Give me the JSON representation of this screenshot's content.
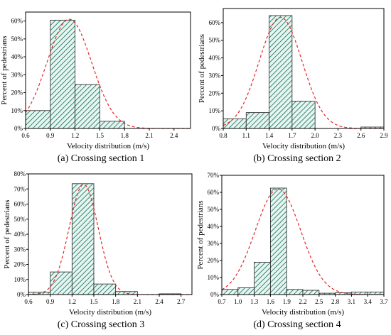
{
  "chart_data": [
    {
      "type": "bar",
      "caption": "(a) Crossing section 1",
      "xlabel": "Velocity distribution (m/s)",
      "ylabel": "Percent of pedestrians",
      "bin_edges": [
        0.6,
        0.9,
        1.2,
        1.5,
        1.8,
        2.1,
        2.4,
        2.6
      ],
      "values": [
        10,
        60.5,
        24.5,
        4,
        0,
        0,
        0
      ],
      "xticks": [
        "0.6",
        "0.9",
        "1.2",
        "1.5",
        "1.8",
        "2.1",
        "2.4"
      ],
      "yticks": [
        "0%",
        "10%",
        "20%",
        "30%",
        "40%",
        "50%",
        "60%"
      ],
      "xlim": [
        0.6,
        2.6
      ],
      "ylim": [
        0,
        65
      ],
      "fit_curve": {
        "type": "normal",
        "mean": 1.13,
        "sd": 0.27,
        "peak": 61
      },
      "colors": {
        "bar_hatch": "#0e6b5a",
        "bar_fill": "#e6f5ef",
        "fit_line": "#e8262a"
      }
    },
    {
      "type": "bar",
      "caption": "(b) Crossing section 2",
      "xlabel": "Velocity distribution (m/s)",
      "ylabel": "Percent of pedestrians",
      "bin_edges": [
        0.8,
        1.1,
        1.4,
        1.7,
        2.0,
        2.3,
        2.6,
        2.9
      ],
      "values": [
        5.5,
        9,
        64,
        15.5,
        0,
        0,
        0.8
      ],
      "xticks": [
        "0.8",
        "1.1",
        "1.4",
        "1.7",
        "2.0",
        "2.3",
        "2.6",
        "2.9"
      ],
      "yticks": [
        "0%",
        "10%",
        "20%",
        "30%",
        "40%",
        "50%",
        "60%"
      ],
      "xlim": [
        0.8,
        2.9
      ],
      "ylim": [
        0,
        68
      ],
      "fit_curve": {
        "type": "normal",
        "mean": 1.55,
        "sd": 0.28,
        "peak": 63
      },
      "colors": {
        "bar_hatch": "#0e6b5a",
        "bar_fill": "#e6f5ef",
        "fit_line": "#e8262a"
      }
    },
    {
      "type": "bar",
      "caption": "(c) Crossing section 3",
      "xlabel": "Velocity distribution (m/s)",
      "ylabel": "Percent of pedestrians",
      "bin_edges": [
        0.6,
        0.9,
        1.2,
        1.5,
        1.8,
        2.1,
        2.4,
        2.7
      ],
      "values": [
        1.5,
        15,
        73.5,
        7,
        2,
        0,
        0.5
      ],
      "xticks": [
        "0.6",
        "0.9",
        "1.2",
        "1.5",
        "1.8",
        "2.1",
        "2.4",
        "2.7"
      ],
      "yticks": [
        "0%",
        "10%",
        "20%",
        "30%",
        "40%",
        "50%",
        "60%",
        "70%",
        "80%"
      ],
      "xlim": [
        0.6,
        2.85
      ],
      "ylim": [
        0,
        80
      ],
      "fit_curve": {
        "type": "normal",
        "mean": 1.36,
        "sd": 0.2,
        "peak": 73
      },
      "colors": {
        "bar_hatch": "#0e6b5a",
        "bar_fill": "#e6f5ef",
        "fit_line": "#e8262a"
      }
    },
    {
      "type": "bar",
      "caption": "(d) Crossing section 4",
      "xlabel": "Velocity distribution (m/s)",
      "ylabel": "Percent of pedestrians",
      "bin_edges": [
        0.7,
        1.0,
        1.3,
        1.6,
        1.9,
        2.2,
        2.5,
        2.8,
        3.1,
        3.4,
        3.7
      ],
      "values": [
        3,
        4,
        19,
        62.5,
        3,
        2.5,
        0.8,
        1,
        1.5,
        1.5
      ],
      "xticks": [
        "0.7",
        "1.0",
        "1.3",
        "1.6",
        "1.9",
        "2.2",
        "2.5",
        "2.8",
        "3.1",
        "3.4",
        "3.7"
      ],
      "yticks": [
        "0%",
        "10%",
        "20%",
        "30%",
        "40%",
        "50%",
        "60%",
        "70%"
      ],
      "xlim": [
        0.7,
        3.7
      ],
      "ylim": [
        0,
        70
      ],
      "fit_curve": {
        "type": "normal",
        "mean": 1.74,
        "sd": 0.42,
        "peak": 62
      },
      "colors": {
        "bar_hatch": "#0e6b5a",
        "bar_fill": "#e6f5ef",
        "fit_line": "#e8262a"
      }
    }
  ]
}
